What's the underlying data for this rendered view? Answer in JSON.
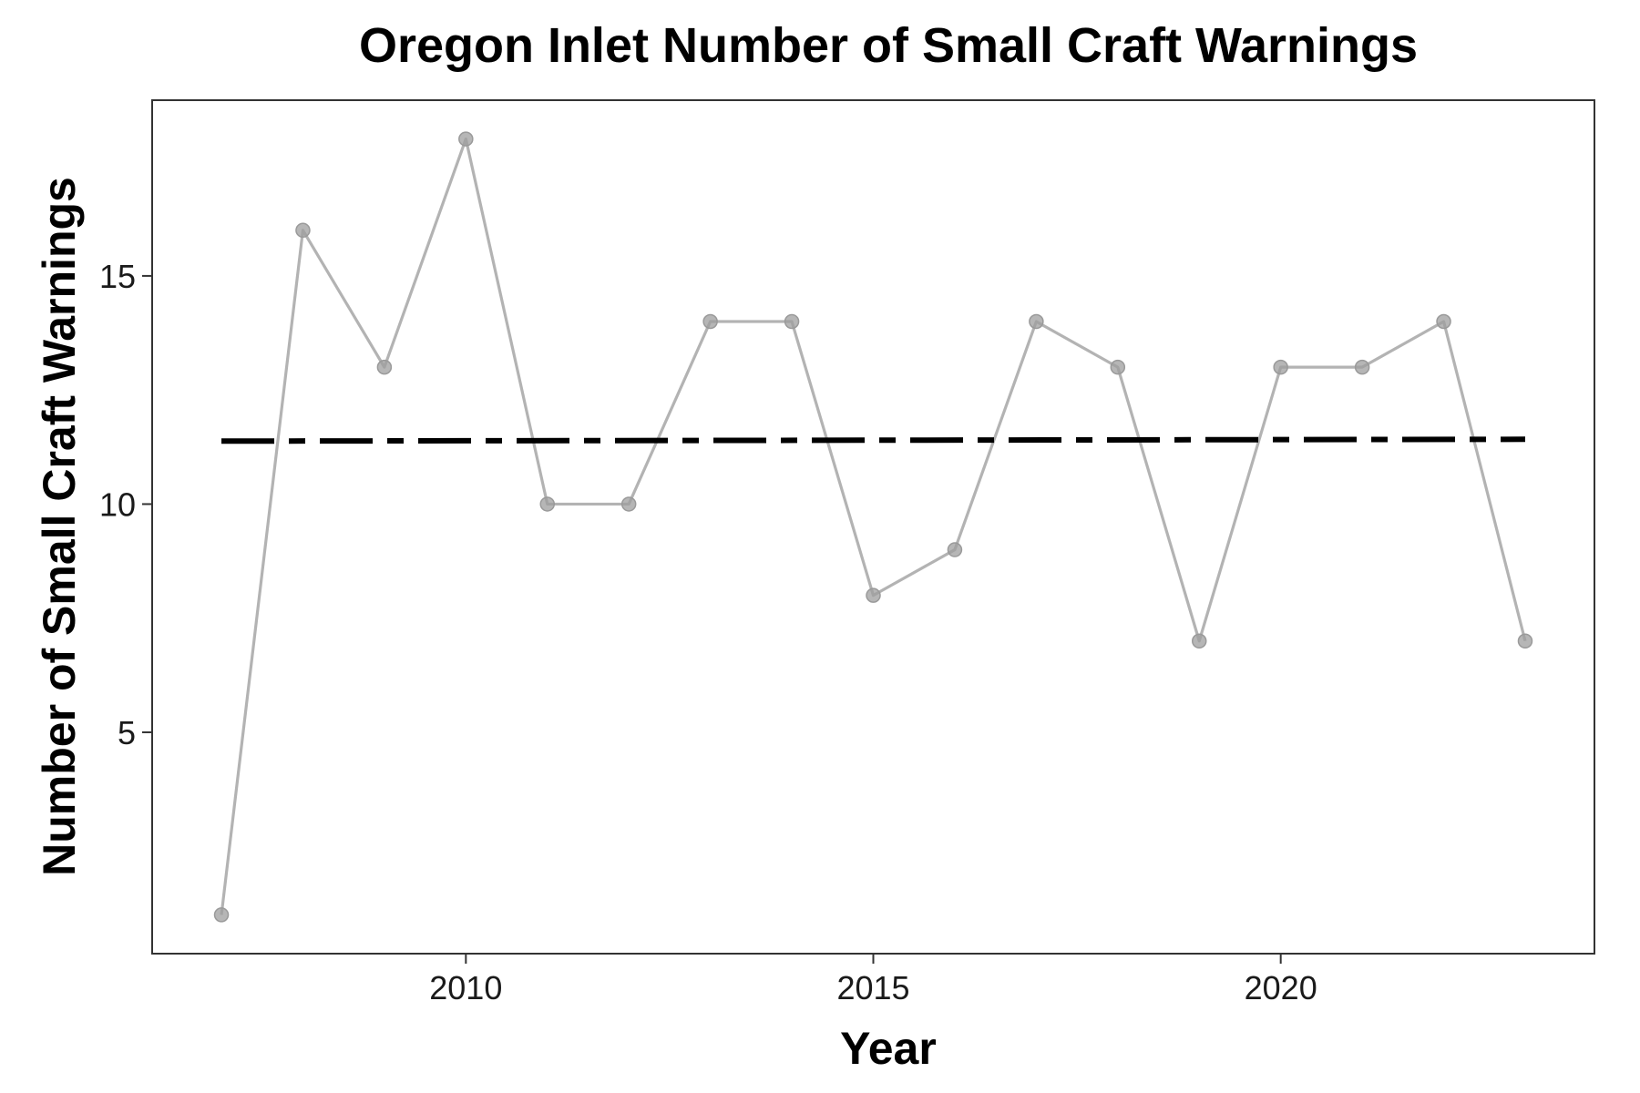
{
  "chart_data": {
    "type": "line",
    "title": "Oregon Inlet Number of Small Craft Warnings",
    "xlabel": "Year",
    "ylabel": "Number of Small Craft Warnings",
    "xlim": [
      2006.15,
      2023.85
    ],
    "ylim": [
      0.15,
      18.85
    ],
    "x_ticks": [
      2010,
      2015,
      2020
    ],
    "y_ticks": [
      5,
      10,
      15
    ],
    "grid": false,
    "legend": "none",
    "series": [
      {
        "color": "#b3b3b3",
        "x": [
          2007,
          2008,
          2009,
          2010,
          2011,
          2012,
          2013,
          2014,
          2015,
          2016,
          2017,
          2018,
          2019,
          2020,
          2021,
          2022,
          2023
        ],
        "y": [
          1,
          16,
          13,
          18,
          10,
          10,
          14,
          14,
          8,
          9,
          14,
          13,
          7,
          13,
          13,
          14,
          7
        ]
      }
    ],
    "trend_line": {
      "style": "dashed-dot",
      "color": "#000000",
      "x": [
        2007,
        2023
      ],
      "y": [
        11.38,
        11.42
      ]
    }
  }
}
